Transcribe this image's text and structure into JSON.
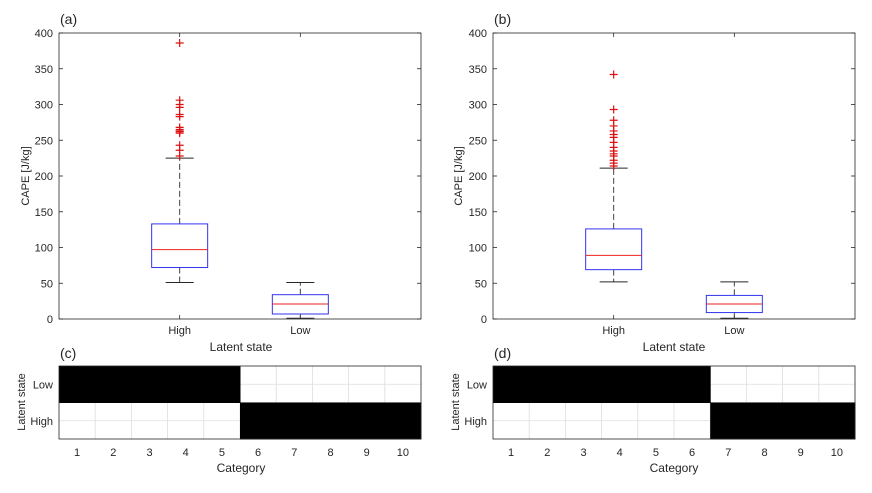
{
  "figure": {
    "panels": [
      {
        "label": "(a)"
      },
      {
        "label": "(b)"
      },
      {
        "label": "(c)"
      },
      {
        "label": "(d)"
      }
    ]
  },
  "colors": {
    "box": "#3333ee",
    "median": "#ee2222",
    "outlier": "#dd1111",
    "whisker": "#444444",
    "axis": "#262626",
    "grid": "#dddddd",
    "fill": "#000000"
  },
  "chart_data": [
    {
      "type": "box",
      "panel": "(a)",
      "title": "",
      "xlabel": "Latent state",
      "ylabel": "CAPE [J/kg]",
      "ylim": [
        0,
        400
      ],
      "yticks": [
        0,
        50,
        100,
        150,
        200,
        250,
        300,
        350,
        400
      ],
      "categories": [
        "High",
        "Low"
      ],
      "boxes": [
        {
          "category": "High",
          "whisker_low": 51,
          "q1": 72,
          "median": 97,
          "q3": 133,
          "whisker_high": 225,
          "outliers": [
            228,
            236,
            243,
            260,
            262,
            263,
            265,
            268,
            283,
            286,
            296,
            300,
            306,
            386
          ]
        },
        {
          "category": "Low",
          "whisker_low": 1,
          "q1": 7,
          "median": 21,
          "q3": 34,
          "whisker_high": 51,
          "outliers": []
        }
      ]
    },
    {
      "type": "box",
      "panel": "(b)",
      "title": "",
      "xlabel": "Latent state",
      "ylabel": "CAPE [J/kg]",
      "ylim": [
        0,
        400
      ],
      "yticks": [
        0,
        50,
        100,
        150,
        200,
        250,
        300,
        350,
        400
      ],
      "categories": [
        "High",
        "Low"
      ],
      "boxes": [
        {
          "category": "High",
          "whisker_low": 52,
          "q1": 69,
          "median": 89,
          "q3": 126,
          "whisker_high": 211,
          "outliers": [
            214,
            218,
            222,
            228,
            231,
            235,
            240,
            247,
            254,
            258,
            263,
            270,
            278,
            293,
            342
          ]
        },
        {
          "category": "Low",
          "whisker_low": 1,
          "q1": 9,
          "median": 21,
          "q3": 33,
          "whisker_high": 52,
          "outliers": []
        }
      ]
    },
    {
      "type": "heatmap",
      "panel": "(c)",
      "xlabel": "Category",
      "ylabel": "Latent state",
      "x": [
        1,
        2,
        3,
        4,
        5,
        6,
        7,
        8,
        9,
        10
      ],
      "y": [
        "Low",
        "High"
      ],
      "values": [
        [
          1,
          1,
          1,
          1,
          1,
          0,
          0,
          0,
          0,
          0
        ],
        [
          0,
          0,
          0,
          0,
          0,
          1,
          1,
          1,
          1,
          1
        ]
      ]
    },
    {
      "type": "heatmap",
      "panel": "(d)",
      "xlabel": "Category",
      "ylabel": "Latent state",
      "x": [
        1,
        2,
        3,
        4,
        5,
        6,
        7,
        8,
        9,
        10
      ],
      "y": [
        "Low",
        "High"
      ],
      "values": [
        [
          1,
          1,
          1,
          1,
          1,
          1,
          0,
          0,
          0,
          0
        ],
        [
          0,
          0,
          0,
          0,
          0,
          0,
          1,
          1,
          1,
          1
        ]
      ]
    }
  ]
}
